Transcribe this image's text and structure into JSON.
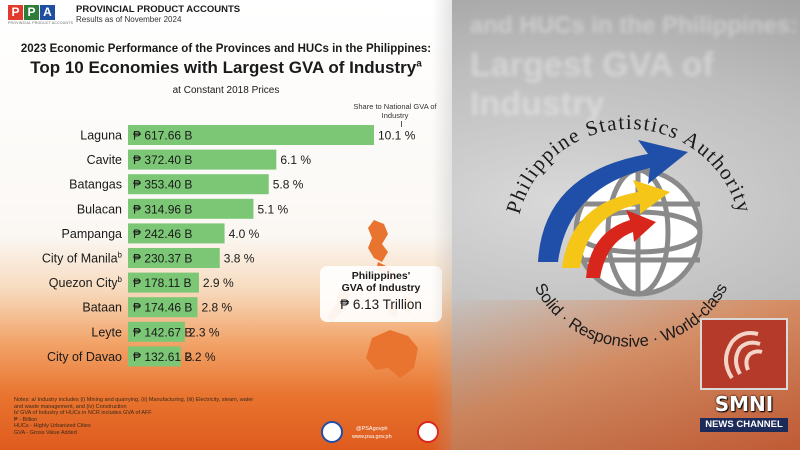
{
  "background": {
    "ghost_line1": "and HUCs in the Philippines:",
    "ghost_line2": "Largest GVA of Industry"
  },
  "header": {
    "logo_letters": [
      "P",
      "P",
      "A"
    ],
    "logo_colors": [
      "#e23b2e",
      "#2e7d3a",
      "#1e4fa0"
    ],
    "logo_tagline": "PROVINCIAL PRODUCT ACCOUNTS",
    "title": "PROVINCIAL PRODUCT ACCOUNTS",
    "subtitle": "Results as of November 2024"
  },
  "infographic": {
    "title_line1": "2023 Economic Performance of the Provinces and HUCs in the Philippines:",
    "title_line2": "Top 10 Economies with Largest GVA of Industry",
    "title_line2_sup": "a",
    "title_line3": "at Constant 2018 Prices",
    "share_note": "Share to National GVA of Industry",
    "total_label_line1": "Philippines'",
    "total_label_line2": "GVA of Industry",
    "total_value": "₱ 6.13 Trillion",
    "notes": [
      "Notes: a/ Industry includes (i) Mining and quarrying, (ii) Manufacturing, (iii) Electricity, steam, water",
      "and waste management, and (iv) Construction",
      "b/ GVA of Industry of HUCs in NCR includes GVA of AFF",
      "₱ - Billion",
      "HUCs - Highly Urbanized Cities",
      "GVA - Gross Value Added"
    ],
    "footer_handle": "@PSAgovph",
    "footer_url": "www.psa.gov.ph"
  },
  "chart_data": {
    "type": "bar",
    "orientation": "horizontal",
    "title": "Top 10 Economies with Largest GVA of Industry",
    "unit": "B",
    "currency": "₱",
    "categories": [
      "Laguna",
      "Cavite",
      "Batangas",
      "Bulacan",
      "Pampanga",
      "City of Manila",
      "Quezon City",
      "Bataan",
      "Leyte",
      "City of Davao"
    ],
    "category_sup": [
      "",
      "",
      "",
      "",
      "",
      "b",
      "b",
      "",
      "",
      ""
    ],
    "values": [
      617.66,
      372.4,
      353.4,
      314.96,
      242.46,
      230.37,
      178.11,
      174.46,
      142.67,
      132.61
    ],
    "value_labels": [
      "₱ 617.66 B",
      "₱ 372.40 B",
      "₱ 353.40 B",
      "₱ 314.96 B",
      "₱ 242.46 B",
      "₱ 230.37 B",
      "₱ 178.11 B",
      "₱ 174.46 B",
      "₱ 142.67 B",
      "₱ 132.61 B"
    ],
    "shares": [
      "10.1 %",
      "6.1 %",
      "5.8 %",
      "5.1 %",
      "4.0 %",
      "3.8 %",
      "2.9 %",
      "2.8 %",
      "2.3 %",
      "2.2 %"
    ],
    "bar_color": "#7cc775",
    "grid": false
  },
  "seal": {
    "arc_text": "Philippine Statistics Authority",
    "tagline": "Solid · Responsive · World-class",
    "colors": {
      "blue": "#1f4fa8",
      "yellow": "#f5c518",
      "red": "#d9261c",
      "globe": "#8a8a8a"
    }
  },
  "smni": {
    "name": "SMNI",
    "channel": "NEWS CHANNEL"
  }
}
